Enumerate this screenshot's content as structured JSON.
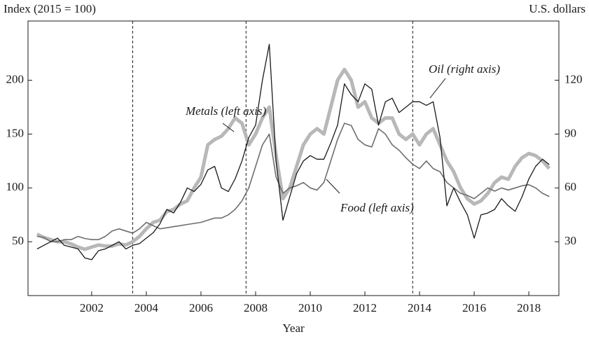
{
  "chart_data": {
    "type": "line",
    "axis_title_left": "Index (2015 = 100)",
    "axis_title_right": "U.S. dollars",
    "xlabel": "Year",
    "x": [
      2000,
      2000.25,
      2000.5,
      2000.75,
      2001,
      2001.25,
      2001.5,
      2001.75,
      2002,
      2002.25,
      2002.5,
      2002.75,
      2003,
      2003.25,
      2003.5,
      2003.75,
      2004,
      2004.25,
      2004.5,
      2004.75,
      2005,
      2005.25,
      2005.5,
      2005.75,
      2006,
      2006.25,
      2006.5,
      2006.75,
      2007,
      2007.25,
      2007.5,
      2007.75,
      2008,
      2008.25,
      2008.5,
      2008.75,
      2009,
      2009.25,
      2009.5,
      2009.75,
      2010,
      2010.25,
      2010.5,
      2010.75,
      2011,
      2011.25,
      2011.5,
      2011.75,
      2012,
      2012.25,
      2012.5,
      2012.75,
      2013,
      2013.25,
      2013.5,
      2013.75,
      2014,
      2014.25,
      2014.5,
      2014.75,
      2015,
      2015.25,
      2015.5,
      2015.75,
      2016,
      2016.25,
      2016.5,
      2016.75,
      2017,
      2017.25,
      2017.5,
      2017.75,
      2018,
      2018.25,
      2018.5,
      2018.75
    ],
    "series": [
      {
        "name": "Metals (left axis)",
        "color": "#b8b8b8",
        "width": 5,
        "values": [
          57,
          54,
          52,
          50,
          50,
          48,
          45,
          43,
          45,
          47,
          46,
          46,
          48,
          47,
          50,
          55,
          62,
          68,
          70,
          78,
          80,
          85,
          88,
          100,
          110,
          140,
          145,
          148,
          155,
          165,
          160,
          140,
          150,
          165,
          175,
          130,
          90,
          100,
          120,
          140,
          150,
          155,
          150,
          175,
          200,
          210,
          200,
          175,
          180,
          165,
          160,
          165,
          165,
          150,
          145,
          150,
          140,
          150,
          155,
          140,
          125,
          115,
          100,
          90,
          85,
          88,
          95,
          105,
          110,
          108,
          120,
          128,
          132,
          130,
          125,
          118
        ]
      },
      {
        "name": "Food (left axis)",
        "color": "#6e6e6e",
        "width": 1.6,
        "values": [
          55,
          54,
          50,
          50,
          52,
          52,
          55,
          53,
          52,
          52,
          55,
          60,
          62,
          60,
          58,
          62,
          68,
          65,
          62,
          63,
          64,
          65,
          66,
          67,
          68,
          70,
          72,
          72,
          75,
          80,
          88,
          100,
          120,
          140,
          150,
          110,
          95,
          100,
          102,
          105,
          100,
          98,
          105,
          125,
          145,
          160,
          158,
          145,
          140,
          138,
          155,
          150,
          140,
          135,
          128,
          122,
          118,
          125,
          118,
          115,
          105,
          100,
          95,
          93,
          90,
          95,
          100,
          97,
          100,
          98,
          100,
          102,
          103,
          100,
          95,
          92
        ]
      },
      {
        "name": "Oil (right axis)",
        "color": "#1a1a1a",
        "width": 1.3,
        "axis": "y2",
        "values": [
          26,
          28,
          30,
          32,
          28,
          27,
          26,
          21,
          20,
          25,
          26,
          28,
          30,
          26,
          28,
          29,
          32,
          35,
          40,
          48,
          46,
          52,
          60,
          58,
          62,
          70,
          72,
          60,
          58,
          65,
          75,
          88,
          95,
          120,
          140,
          75,
          42,
          55,
          68,
          75,
          78,
          76,
          76,
          85,
          95,
          118,
          112,
          108,
          118,
          115,
          95,
          108,
          110,
          102,
          105,
          108,
          108,
          106,
          108,
          88,
          50,
          60,
          52,
          45,
          32,
          45,
          46,
          48,
          54,
          50,
          47,
          55,
          65,
          72,
          76,
          73
        ]
      }
    ],
    "xlim": [
      1999.67,
      2019.1
    ],
    "xticks": [
      2002,
      2004,
      2006,
      2008,
      2010,
      2012,
      2014,
      2016,
      2018
    ],
    "ylim": [
      0,
      255
    ],
    "yticks": [
      50,
      100,
      150,
      200
    ],
    "y2lim": [
      0,
      153
    ],
    "y2ticks": [
      30,
      60,
      90,
      120
    ],
    "vlines": [
      2003.5,
      2007.65,
      2013.75
    ]
  }
}
